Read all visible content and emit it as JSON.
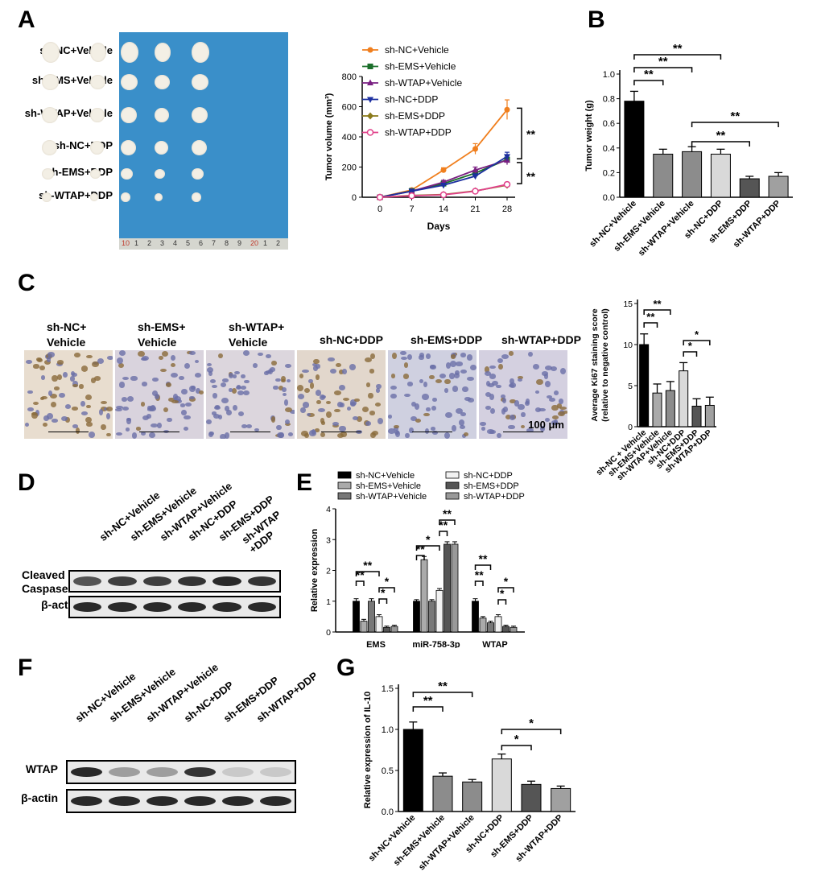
{
  "panels": {
    "A": "A",
    "B": "B",
    "C": "C",
    "D": "D",
    "E": "E",
    "F": "F",
    "G": "G"
  },
  "photo_groups": [
    "sh-NC+Vehicle",
    "sh-EMS+Vehicle",
    "sh-WTAP+Vehicle",
    "sh-NC+DDP",
    "sh-EMS+DDP",
    "sh-WTAP+DDP"
  ],
  "ruler_labels": [
    "10",
    "1",
    "2",
    "3",
    "4",
    "5",
    "6",
    "7",
    "8",
    "9",
    "20",
    "1",
    "2"
  ],
  "ihc_labels": [
    [
      "sh-NC+",
      "Vehicle"
    ],
    [
      "sh-EMS+",
      "Vehicle"
    ],
    [
      "sh-WTAP+",
      "Vehicle"
    ],
    [
      "sh-NC+DDP",
      ""
    ],
    [
      "sh-EMS+DDP",
      ""
    ],
    [
      "sh-WTAP+DDP",
      ""
    ]
  ],
  "ihc_scale": "100 μm",
  "wb_D": {
    "lanes": [
      "sh-NC+Vehicle",
      "sh-EMS+Vehicle",
      "sh-WTAP+Vehicle",
      "sh-NC+DDP",
      "sh-EMS+DDP",
      "sh-WTAP\n+DDP"
    ],
    "rows": [
      "Cleaved\nCaspase-3",
      "β-actin"
    ]
  },
  "wb_F": {
    "lanes": [
      "sh-NC+Vehicle",
      "sh-EMS+Vehicle",
      "sh-WTAP+Vehicle",
      "sh-NC+DDP",
      "sh-EMS+DDP",
      "sh-WTAP+DDP"
    ],
    "rows": [
      "WTAP",
      "β-actin"
    ]
  },
  "chart_data": [
    {
      "id": "A-line",
      "type": "line",
      "xlabel": "Days",
      "ylabel": "Tumor volume (mm³)",
      "x": [
        0,
        7,
        14,
        21,
        28
      ],
      "ylim": [
        0,
        800
      ],
      "yticks": [
        0,
        200,
        400,
        600,
        800
      ],
      "series": [
        {
          "name": "sh-NC+Vehicle",
          "color": "#f07f1e",
          "marker": "circle",
          "values": [
            0,
            48,
            180,
            320,
            580
          ],
          "err": [
            5,
            8,
            15,
            35,
            65
          ]
        },
        {
          "name": "sh-EMS+Vehicle",
          "color": "#1a6e2a",
          "marker": "square",
          "values": [
            0,
            42,
            90,
            160,
            250
          ],
          "err": [
            4,
            6,
            12,
            18,
            30
          ]
        },
        {
          "name": "sh-WTAP+Vehicle",
          "color": "#7a2082",
          "marker": "triangle-up",
          "values": [
            0,
            40,
            100,
            180,
            245
          ],
          "err": [
            4,
            6,
            12,
            20,
            30
          ]
        },
        {
          "name": "sh-NC+DDP",
          "color": "#1c2fa0",
          "marker": "triangle-down",
          "values": [
            0,
            40,
            80,
            140,
            270
          ],
          "err": [
            4,
            6,
            10,
            15,
            28
          ]
        },
        {
          "name": "sh-EMS+DDP",
          "color": "#8a7a1a",
          "marker": "diamond",
          "values": [
            0,
            12,
            18,
            42,
            80
          ],
          "err": [
            2,
            3,
            4,
            6,
            8
          ]
        },
        {
          "name": "sh-WTAP+DDP",
          "color": "#e0408a",
          "marker": "circle-open",
          "values": [
            0,
            10,
            16,
            40,
            85
          ],
          "err": [
            2,
            3,
            4,
            6,
            8
          ]
        }
      ],
      "sig": [
        "**",
        "**"
      ]
    },
    {
      "id": "B",
      "type": "bar",
      "ylabel": "Tumor weight (g)",
      "ylim": [
        0,
        1.0
      ],
      "yticks": [
        "0.0",
        "0.2",
        "0.4",
        "0.6",
        "0.8",
        "1.0"
      ],
      "categories": [
        "sh-NC+Vehicle",
        "sh-EMS+Vehicle",
        "sh-WTAP+Vehicle",
        "sh-NC+DDP",
        "sh-EMS+DDP",
        "sh-WTAP+DDP"
      ],
      "values": [
        0.78,
        0.35,
        0.37,
        0.35,
        0.15,
        0.17
      ],
      "err": [
        0.08,
        0.04,
        0.04,
        0.04,
        0.02,
        0.03
      ],
      "colors": [
        "#000000",
        "#8c8c8c",
        "#8c8c8c",
        "#d9d9d9",
        "#555555",
        "#a0a0a0"
      ],
      "sig": [
        {
          "a": 0,
          "b": 1,
          "t": "**"
        },
        {
          "a": 0,
          "b": 2,
          "t": "**"
        },
        {
          "a": 0,
          "b": 3,
          "t": "**"
        },
        {
          "a": 2,
          "b": 4,
          "t": "**"
        },
        {
          "a": 2,
          "b": 5,
          "t": "**"
        }
      ]
    },
    {
      "id": "C-bar",
      "type": "bar",
      "ylabel": "Average Ki67 staining score",
      "ylabel2": "(relative to negative control)",
      "ylim": [
        0,
        15
      ],
      "yticks": [
        "0",
        "5",
        "10",
        "15"
      ],
      "categories": [
        "sh-NC + Vehicle",
        "sh-EMS+Vehicle",
        "sh-WTAP+Vehicle",
        "sh-NC+DDP",
        "sh-EMS+DDP",
        "sh-WTAP+DDP"
      ],
      "values": [
        10.0,
        4.1,
        4.4,
        6.8,
        2.5,
        2.6
      ],
      "err": [
        1.3,
        1.1,
        1.1,
        1.0,
        0.9,
        1.0
      ],
      "colors": [
        "#000000",
        "#aaaaaa",
        "#8c8c8c",
        "#d9d9d9",
        "#555555",
        "#a0a0a0"
      ],
      "sig": [
        {
          "a": 0,
          "b": 1,
          "t": "**"
        },
        {
          "a": 0,
          "b": 2,
          "t": "**"
        },
        {
          "a": 3,
          "b": 4,
          "t": "*"
        },
        {
          "a": 3,
          "b": 5,
          "t": "*"
        }
      ]
    },
    {
      "id": "E",
      "type": "bar",
      "ylabel": "Relative expression",
      "ylim": [
        0,
        4
      ],
      "yticks": [
        "0",
        "1",
        "2",
        "3",
        "4"
      ],
      "categories": [
        "EMS",
        "miR-758-3p",
        "WTAP"
      ],
      "series": [
        {
          "name": "sh-NC+Vehicle",
          "color": "#000000",
          "values": [
            1.0,
            1.0,
            1.0
          ],
          "err": [
            0.08,
            0.05,
            0.08
          ]
        },
        {
          "name": "sh-EMS+Vehicle",
          "color": "#aaaaaa",
          "values": [
            0.35,
            2.35,
            0.45
          ],
          "err": [
            0.06,
            0.1,
            0.05
          ]
        },
        {
          "name": "sh-WTAP+Vehicle",
          "color": "#777777",
          "values": [
            1.0,
            1.0,
            0.3
          ],
          "err": [
            0.08,
            0.05,
            0.05
          ]
        },
        {
          "name": "sh-NC+DDP",
          "color": "#f2f2f2",
          "values": [
            0.5,
            1.35,
            0.5
          ],
          "err": [
            0.06,
            0.06,
            0.06
          ]
        },
        {
          "name": "sh-EMS+DDP",
          "color": "#555555",
          "values": [
            0.15,
            2.85,
            0.18
          ],
          "err": [
            0.04,
            0.08,
            0.04
          ]
        },
        {
          "name": "sh-WTAP+DDP",
          "color": "#999999",
          "values": [
            0.18,
            2.85,
            0.15
          ],
          "err": [
            0.04,
            0.08,
            0.04
          ]
        }
      ],
      "sig": [
        "**",
        "**",
        "*",
        "*",
        "**",
        "*",
        "**",
        "**",
        "**",
        "**",
        "*",
        "*"
      ]
    },
    {
      "id": "G",
      "type": "bar",
      "ylabel": "Relative expression of IL-10",
      "ylim": [
        0,
        1.5
      ],
      "yticks": [
        "0.0",
        "0.5",
        "1.0",
        "1.5"
      ],
      "categories": [
        "sh-NC+Vehicle",
        "sh-EMS+Vehicle",
        "sh-WTAP+Vehicle",
        "sh-NC+DDP",
        "sh-EMS+DDP",
        "sh-WTAP+DDP"
      ],
      "values": [
        1.0,
        0.43,
        0.36,
        0.64,
        0.33,
        0.28
      ],
      "err": [
        0.09,
        0.04,
        0.03,
        0.06,
        0.04,
        0.03
      ],
      "colors": [
        "#000000",
        "#8c8c8c",
        "#8c8c8c",
        "#d9d9d9",
        "#555555",
        "#a0a0a0"
      ],
      "sig": [
        {
          "a": 0,
          "b": 1,
          "t": "**"
        },
        {
          "a": 0,
          "b": 2,
          "t": "**"
        },
        {
          "a": 3,
          "b": 4,
          "t": "*"
        },
        {
          "a": 3,
          "b": 5,
          "t": "*"
        }
      ]
    }
  ]
}
